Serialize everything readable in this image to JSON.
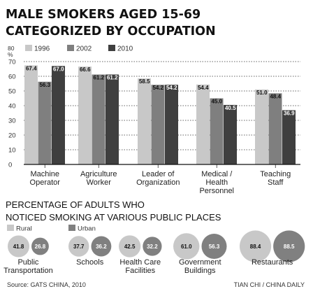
{
  "colors": {
    "c1996": "#c8c8c8",
    "c2002": "#7f7f7f",
    "c2010": "#3f3f3f",
    "rural": "#c8c8c8",
    "urban": "#808080",
    "text": "#222222"
  },
  "chart_data": [
    {
      "type": "bar",
      "title": "MALE SMOKERS AGED 15-69 CATEGORIZED BY OCCUPATION",
      "title_lines": [
        "MALE SMOKERS AGED 15-69",
        "CATEGORIZED BY OCCUPATION"
      ],
      "yunit_top": "80",
      "yunit": "%",
      "ylim": [
        0,
        80
      ],
      "yticks": [
        0,
        10,
        20,
        30,
        40,
        50,
        60,
        70
      ],
      "grid": "horizontal dotted",
      "legend_placement": "top",
      "categories": [
        [
          "Machine",
          "Operator"
        ],
        [
          "Agriculture",
          "Worker"
        ],
        [
          "Leader of",
          "Organization"
        ],
        [
          "Medical /",
          "Health",
          "Personnel"
        ],
        [
          "Teaching",
          "Staff"
        ]
      ],
      "series": [
        {
          "name": "1996",
          "values": [
            67.4,
            66.6,
            58.5,
            54.4,
            51.0
          ]
        },
        {
          "name": "2002",
          "values": [
            56.3,
            61.2,
            54.2,
            45.0,
            48.4
          ]
        },
        {
          "name": "2010",
          "values": [
            67.0,
            61.2,
            54.2,
            40.5,
            36.9
          ]
        }
      ]
    },
    {
      "type": "bubble",
      "title": "PERCENTAGE OF ADULTS WHO NOTICED SMOKING AT VARIOUS PUBLIC PLACES",
      "title_lines": [
        "PERCENTAGE OF ADULTS WHO",
        "NOTICED SMOKING AT VARIOUS PUBLIC PLACES"
      ],
      "legend_placement": "top-left",
      "series_names": [
        "Rural",
        "Urban"
      ],
      "categories": [
        [
          "Public",
          "Transportation"
        ],
        [
          "Schools"
        ],
        [
          "Health Care",
          "Facilities"
        ],
        [
          "Government",
          "Buildings"
        ],
        [
          "Restaurants"
        ]
      ],
      "rural": [
        41.8,
        37.7,
        42.5,
        61.0,
        88.4
      ],
      "urban": [
        26.8,
        36.2,
        32.2,
        56.3,
        88.5
      ]
    }
  ],
  "footer": {
    "source": "Source: GATS CHINA, 2010",
    "credit": "TIAN CHI / CHINA DAILY"
  }
}
